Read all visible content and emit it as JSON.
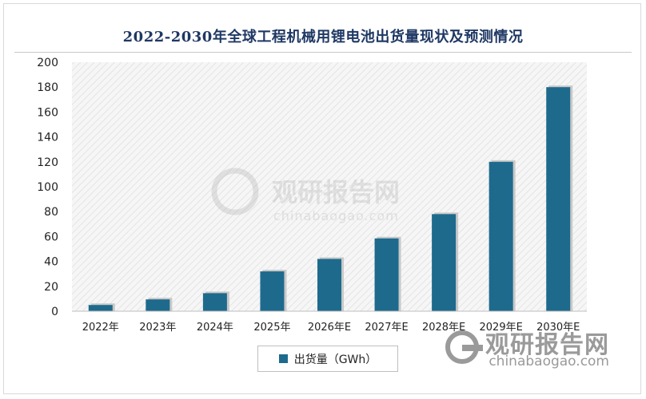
{
  "chart_data": {
    "type": "bar",
    "title": "2022-2030年全球工程机械用锂电池出货量现状及预测情况",
    "categories": [
      "2022年",
      "2023年",
      "2024年",
      "2025年",
      "2026年E",
      "2027年E",
      "2028年E",
      "2029年E",
      "2030年E"
    ],
    "series": [
      {
        "name": "出货量（GWh）",
        "values": [
          5,
          9.5,
          14.5,
          32,
          42,
          58.5,
          78,
          120,
          180
        ],
        "color": "#1e6a8d"
      }
    ],
    "ylim": [
      0,
      200
    ],
    "yticks": [
      0,
      20,
      40,
      60,
      80,
      100,
      120,
      140,
      160,
      180,
      200
    ],
    "grid": false,
    "legend": "bottom-center",
    "background": "diagonal-hatch"
  },
  "watermark": {
    "center_brand": "观研报告网",
    "center_url": "chinabaogao.com",
    "corner_brand": "观研报告网",
    "corner_url": "chinabaogao.com"
  }
}
